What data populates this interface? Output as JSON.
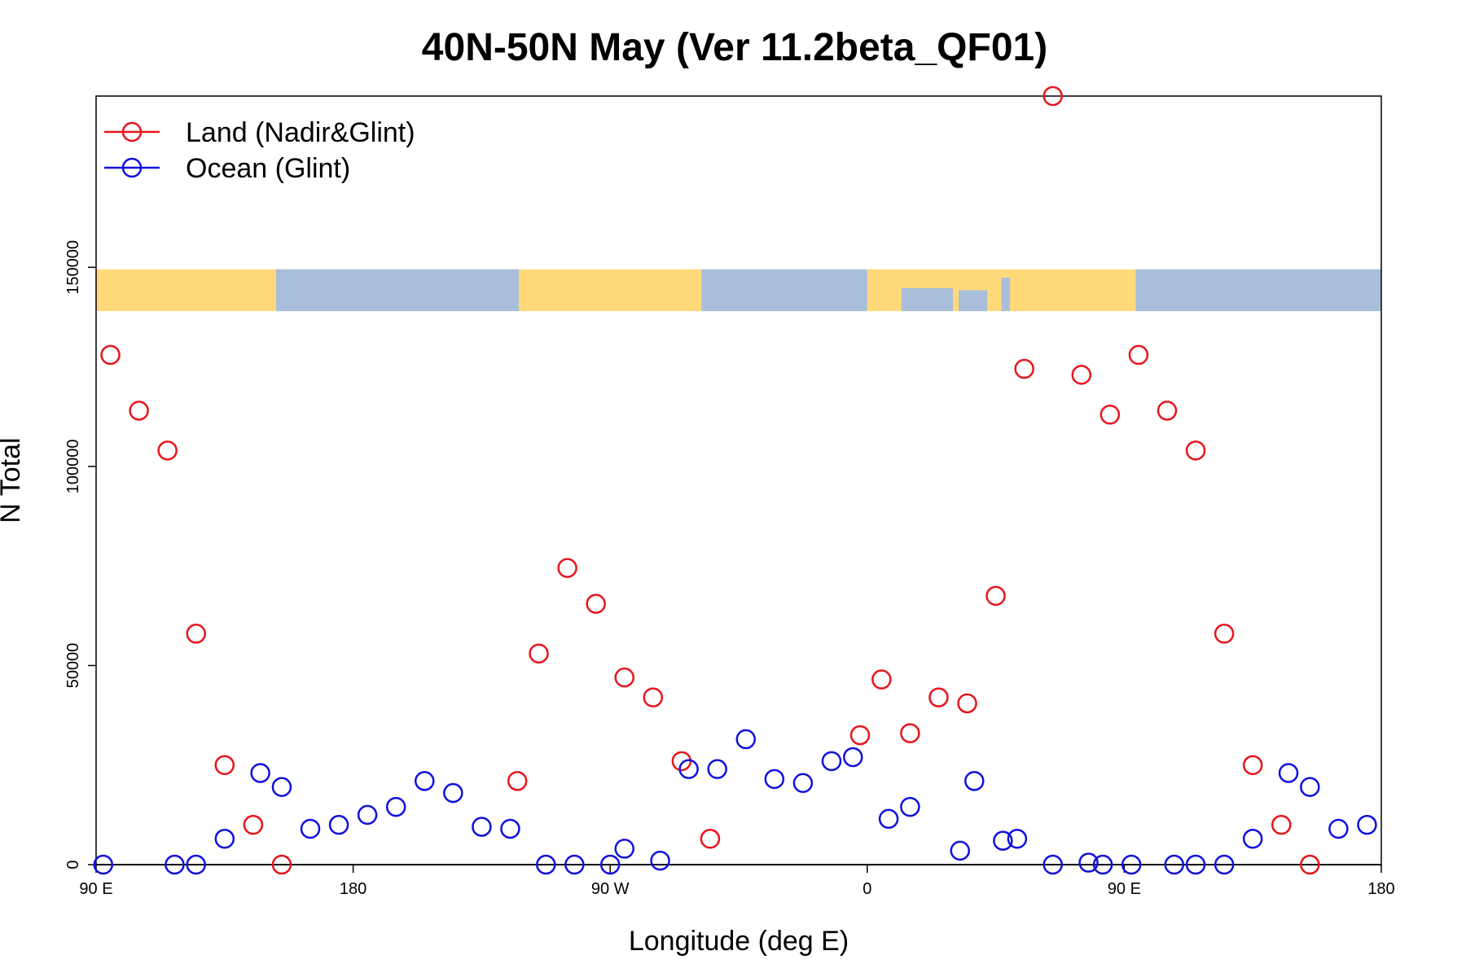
{
  "chart_data": {
    "type": "scatter",
    "title": "40N-50N May (Ver 11.2beta_QF01)",
    "xlabel": "Longitude (deg E)",
    "ylabel": "N Total",
    "xlim": [
      90,
      540
    ],
    "ylim": [
      0,
      193000
    ],
    "x_ticks": [
      {
        "value": 90,
        "label": "90 E"
      },
      {
        "value": 180,
        "label": "180"
      },
      {
        "value": 270,
        "label": "90 W"
      },
      {
        "value": 360,
        "label": "0"
      },
      {
        "value": 450,
        "label": "90 E"
      },
      {
        "value": 540,
        "label": "180"
      }
    ],
    "y_ticks": [
      {
        "value": 0,
        "label": "0"
      },
      {
        "value": 50000,
        "label": "50000"
      },
      {
        "value": 100000,
        "label": "100000"
      },
      {
        "value": 150000,
        "label": "150000"
      }
    ],
    "map_strip": {
      "y_from": 139000,
      "y_to": 149500,
      "land_color": "#FFD97A",
      "ocean_color": "#A9BEDB"
    },
    "legend": {
      "position": "top-left"
    },
    "series": [
      {
        "name": "Land (Nadir&Glint)",
        "color": "#E8141B",
        "points": [
          [
            95,
            128000
          ],
          [
            105,
            114000
          ],
          [
            115,
            104000
          ],
          [
            125,
            58000
          ],
          [
            135,
            25000
          ],
          [
            145,
            10000
          ],
          [
            155,
            0
          ],
          [
            237.5,
            21000
          ],
          [
            245,
            53000
          ],
          [
            255,
            74500
          ],
          [
            265,
            65500
          ],
          [
            275,
            47000
          ],
          [
            285,
            42000
          ],
          [
            295,
            26000
          ],
          [
            305,
            6500
          ],
          [
            357.5,
            32500
          ],
          [
            365,
            46500
          ],
          [
            375,
            33000
          ],
          [
            385,
            42000
          ],
          [
            395,
            40500
          ],
          [
            405,
            67500
          ],
          [
            415,
            124500
          ],
          [
            425,
            193000
          ],
          [
            435,
            123000
          ],
          [
            445,
            113000
          ],
          [
            455,
            128000
          ],
          [
            465,
            114000
          ],
          [
            475,
            104000
          ],
          [
            485,
            58000
          ],
          [
            495,
            25000
          ],
          [
            505,
            10000
          ],
          [
            515,
            0
          ]
        ]
      },
      {
        "name": "Ocean (Glint)",
        "color": "#1010E0",
        "points": [
          [
            92.5,
            0
          ],
          [
            117.5,
            0
          ],
          [
            125,
            0
          ],
          [
            135,
            6500
          ],
          [
            147.5,
            23000
          ],
          [
            155,
            19500
          ],
          [
            165,
            9000
          ],
          [
            175,
            10000
          ],
          [
            185,
            12500
          ],
          [
            195,
            14500
          ],
          [
            205,
            21000
          ],
          [
            215,
            18000
          ],
          [
            225,
            9500
          ],
          [
            235,
            9000
          ],
          [
            247.5,
            0
          ],
          [
            257.5,
            0
          ],
          [
            270,
            0
          ],
          [
            275,
            4000
          ],
          [
            287.5,
            1000
          ],
          [
            297.5,
            24000
          ],
          [
            307.5,
            24000
          ],
          [
            317.5,
            31500
          ],
          [
            327.5,
            21500
          ],
          [
            337.5,
            20500
          ],
          [
            347.5,
            26000
          ],
          [
            355,
            27000
          ],
          [
            367.5,
            11500
          ],
          [
            375,
            14500
          ],
          [
            392.5,
            3500
          ],
          [
            397.5,
            21000
          ],
          [
            407.5,
            6000
          ],
          [
            412.5,
            6500
          ],
          [
            425,
            0
          ],
          [
            437.5,
            500
          ],
          [
            442.5,
            0
          ],
          [
            452.5,
            0
          ],
          [
            467.5,
            0
          ],
          [
            475,
            0
          ],
          [
            485,
            0
          ],
          [
            495,
            6500
          ],
          [
            507.5,
            23000
          ],
          [
            515,
            19500
          ],
          [
            525,
            9000
          ],
          [
            535,
            10000
          ]
        ]
      }
    ]
  }
}
